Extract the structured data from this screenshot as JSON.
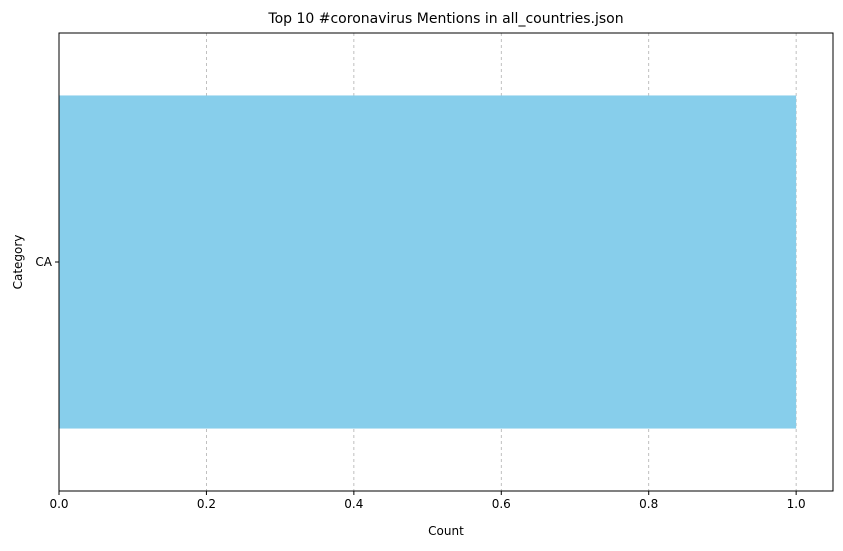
{
  "chart_data": {
    "type": "bar",
    "orientation": "horizontal",
    "title": "Top 10 #coronavirus Mentions in all_countries.json",
    "xlabel": "Count",
    "ylabel": "Category",
    "categories": [
      "CA"
    ],
    "values": [
      1
    ],
    "xlim": [
      0,
      1.05
    ],
    "xticks": [
      "0.0",
      "0.2",
      "0.4",
      "0.6",
      "0.8",
      "1.0"
    ],
    "grid": "x-dashed",
    "bar_color": "#87CEEB"
  }
}
